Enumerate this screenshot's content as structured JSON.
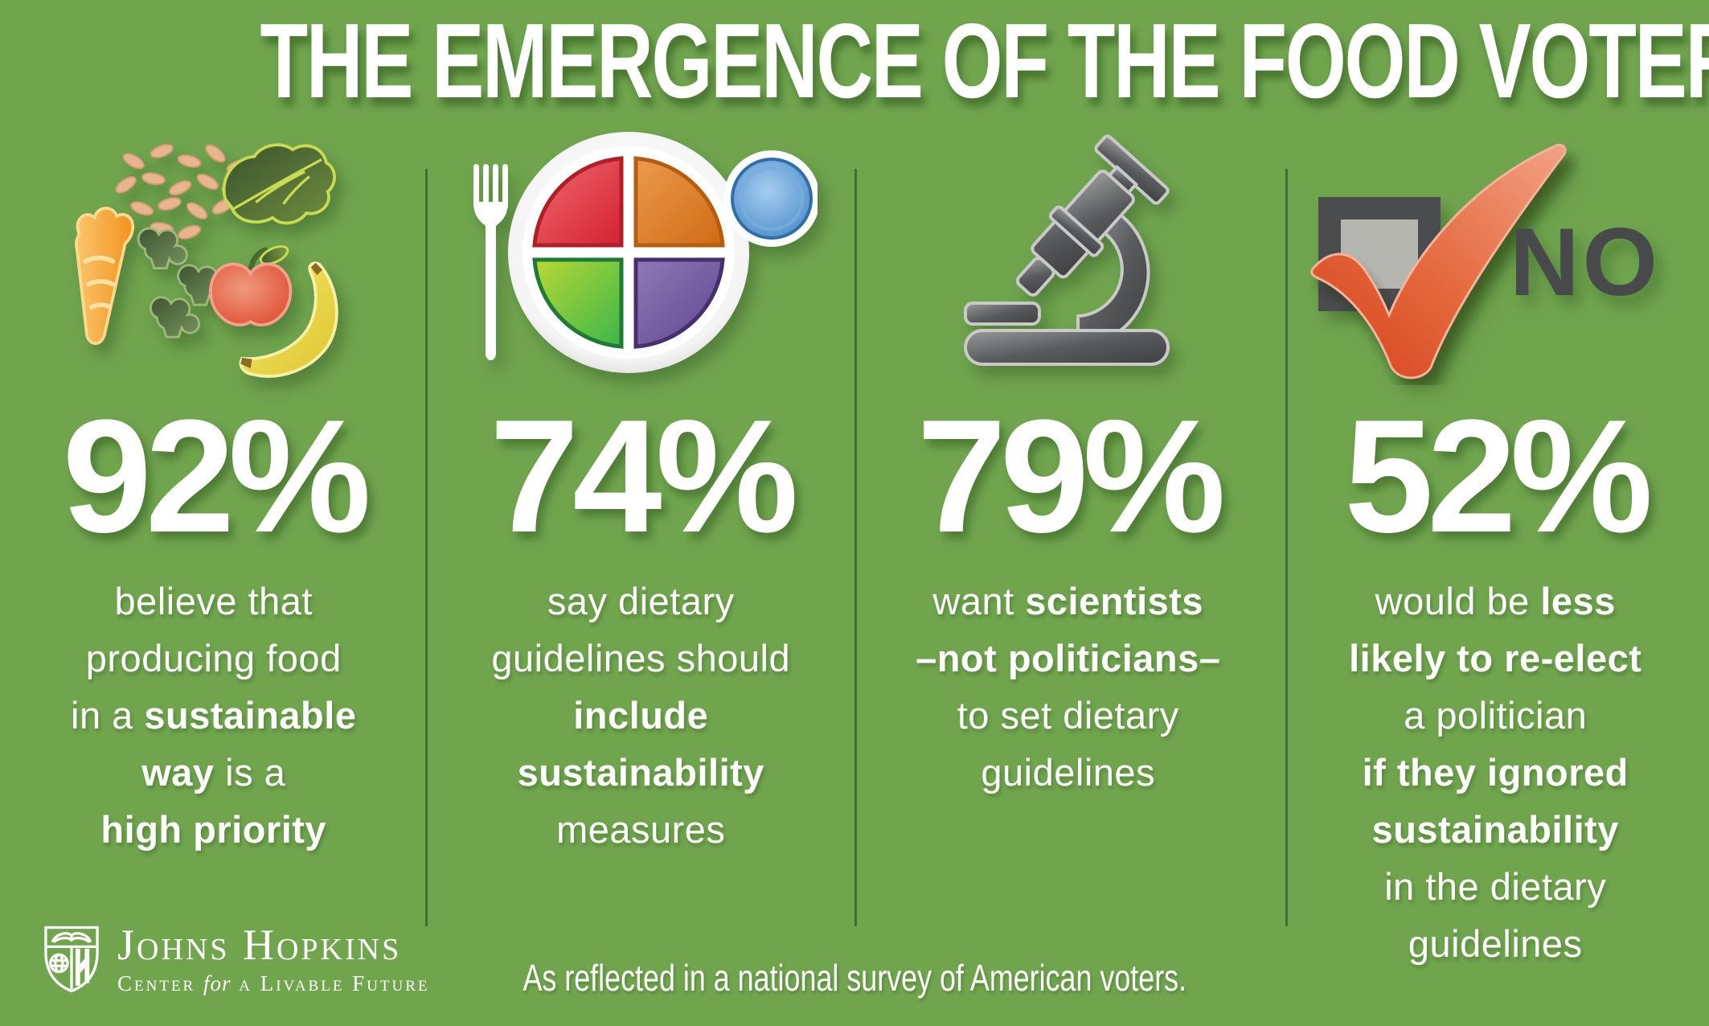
{
  "title": "THE EMERGENCE OF THE FOOD VOTER",
  "chart_data": {
    "type": "table",
    "title": "The Emergence of the Food Voter",
    "categories": [
      "believe that producing food in a sustainable way is a high priority",
      "say dietary guidelines should include sustainability measures",
      "want scientists -not politicians- to set dietary guidelines",
      "would be less likely to re-elect a politician if they ignored sustainability in the dietary guidelines"
    ],
    "values": [
      92,
      74,
      79,
      52
    ],
    "unit": "%",
    "note": "As reflected in a national survey of American voters."
  },
  "colors": {
    "background": "#70a54e",
    "divider": "#3e7030",
    "text": "#ffffff",
    "no_label": "#48494b",
    "checkbox_dark": "#4b4c4e",
    "checkbox_inner": "#b5b6af",
    "check_red": "#dc4f24"
  },
  "columns": [
    {
      "stat": "92%",
      "icon": "produce-icon",
      "lines": [
        [
          {
            "t": "believe that",
            "b": false
          }
        ],
        [
          {
            "t": "producing food",
            "b": false
          }
        ],
        [
          {
            "t": "in a ",
            "b": false
          },
          {
            "t": "sustainable",
            "b": true
          }
        ],
        [
          {
            "t": "way",
            "b": true
          },
          {
            "t": " is a",
            "b": false
          }
        ],
        [
          {
            "t": "high priority",
            "b": true
          }
        ]
      ]
    },
    {
      "stat": "74%",
      "icon": "myplate-icon",
      "lines": [
        [
          {
            "t": "say dietary",
            "b": false
          }
        ],
        [
          {
            "t": "guidelines should",
            "b": false
          }
        ],
        [
          {
            "t": "include",
            "b": true
          }
        ],
        [
          {
            "t": "sustainability",
            "b": true
          }
        ],
        [
          {
            "t": "measures",
            "b": false
          }
        ]
      ]
    },
    {
      "stat": "79%",
      "icon": "microscope-icon",
      "lines": [
        [
          {
            "t": "want ",
            "b": false
          },
          {
            "t": "scientists",
            "b": true
          }
        ],
        [
          {
            "t": "–not politicians–",
            "b": true
          }
        ],
        [
          {
            "t": "to set dietary",
            "b": false
          }
        ],
        [
          {
            "t": "guidelines",
            "b": false
          }
        ]
      ]
    },
    {
      "stat": "52%",
      "icon": "checkbox-no-icon",
      "no_label": "NO",
      "lines": [
        [
          {
            "t": "would be ",
            "b": false
          },
          {
            "t": "less",
            "b": true
          }
        ],
        [
          {
            "t": "likely to re-elect",
            "b": true
          }
        ],
        [
          {
            "t": "a politician",
            "b": false
          }
        ],
        [
          {
            "t": "if they ignored",
            "b": true
          }
        ],
        [
          {
            "t": "sustainability",
            "b": true
          }
        ],
        [
          {
            "t": "in the dietary",
            "b": false
          }
        ],
        [
          {
            "t": "guidelines",
            "b": false
          }
        ]
      ]
    }
  ],
  "footer": {
    "logo_line1": "Johns Hopkins",
    "logo_line2_pre": "Center ",
    "logo_line2_for": "for",
    "logo_line2_post": " a Livable Future",
    "caption": "As reflected in a national survey of American voters."
  }
}
